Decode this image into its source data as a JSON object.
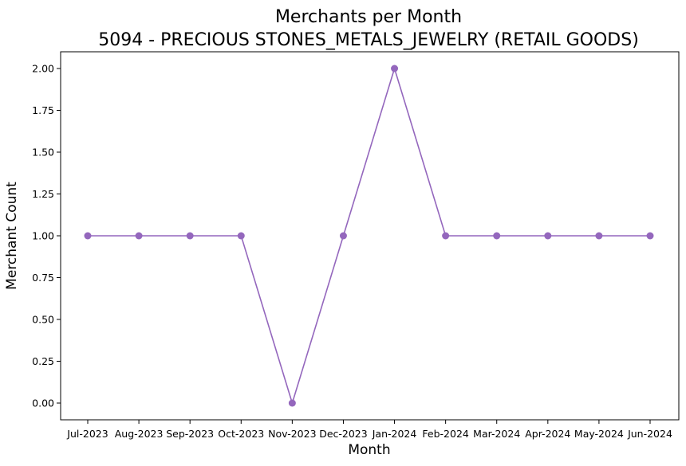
{
  "chart_data": {
    "type": "line",
    "title": "Merchants per Month",
    "subtitle": "5094 - PRECIOUS STONES_METALS_JEWELRY (RETAIL GOODS)",
    "xlabel": "Month",
    "ylabel": "Merchant Count",
    "categories": [
      "Jul-2023",
      "Aug-2023",
      "Sep-2023",
      "Oct-2023",
      "Nov-2023",
      "Dec-2023",
      "Jan-2024",
      "Feb-2024",
      "Mar-2024",
      "Apr-2024",
      "May-2024",
      "Jun-2024"
    ],
    "series": [
      {
        "values": [
          1,
          1,
          1,
          1,
          0,
          1,
          2,
          1,
          1,
          1,
          1,
          1
        ],
        "color": "#9467bd"
      }
    ],
    "ylim": [
      -0.1,
      2.1
    ],
    "yticks": [
      "0.00",
      "0.25",
      "0.50",
      "0.75",
      "1.00",
      "1.25",
      "1.50",
      "1.75",
      "2.00"
    ],
    "grid": false,
    "legend": "none"
  }
}
